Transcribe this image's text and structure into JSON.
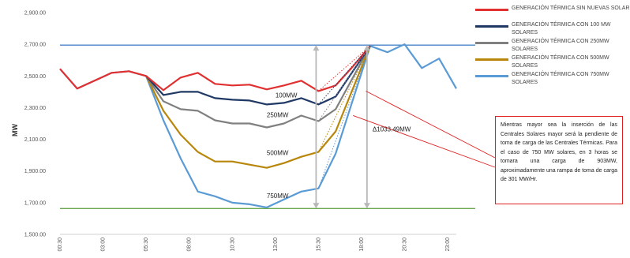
{
  "chart_data": {
    "type": "line",
    "ylabel": "MW",
    "ylim": [
      1500,
      2900
    ],
    "y_ticks": [
      "1,500.00",
      "1,700.00",
      "1,900.00",
      "2,100.00",
      "2,300.00",
      "2,500.00",
      "2,700.00",
      "2,900.00"
    ],
    "x_ticks": [
      "00:30",
      "03:00",
      "05:30",
      "08:00",
      "10:30",
      "13:00",
      "15:30",
      "18:00",
      "20:30",
      "23:00"
    ],
    "x": [
      "00:30",
      "01:30",
      "02:30",
      "03:30",
      "04:30",
      "05:30",
      "06:30",
      "07:30",
      "08:30",
      "09:30",
      "10:30",
      "11:30",
      "12:30",
      "13:30",
      "14:30",
      "15:30",
      "16:30",
      "17:30",
      "18:30",
      "19:30",
      "20:30",
      "21:30",
      "22:30",
      "23:30"
    ],
    "hlines": [
      {
        "value": 2695,
        "color": "#4a86c8"
      },
      {
        "value": 1663,
        "color": "#6aa84f"
      }
    ],
    "series": [
      {
        "name": "GENERACIÓN TÉRMICA SIN NUEVAS SOLAR",
        "color": "#e03030",
        "values": [
          2545,
          2420,
          2470,
          2520,
          2530,
          2500,
          2410,
          2490,
          2520,
          2450,
          2440,
          2445,
          2415,
          2440,
          2470,
          2405,
          2440,
          2560,
          2690,
          null,
          null,
          null,
          null,
          null
        ]
      },
      {
        "name": "GENERACIÓN TÉRMICA CON 100 MW SOLARES",
        "color": "#1f3864",
        "values": [
          null,
          null,
          null,
          null,
          null,
          2500,
          2380,
          2400,
          2400,
          2360,
          2350,
          2345,
          2320,
          2330,
          2360,
          2320,
          2370,
          2530,
          2690,
          null,
          null,
          null,
          null,
          null
        ]
      },
      {
        "name": "GENERACIÓN TÉRMICA CON 250MW SOLARES",
        "color": "#808080",
        "values": [
          null,
          null,
          null,
          null,
          null,
          2500,
          2340,
          2290,
          2280,
          2220,
          2200,
          2200,
          2175,
          2200,
          2250,
          2215,
          2290,
          2490,
          2690,
          null,
          null,
          null,
          null,
          null
        ]
      },
      {
        "name": "GENERACIÓN TÉRMICA CON 500MW SOLARES",
        "color": "#b8860b",
        "values": [
          null,
          null,
          null,
          null,
          null,
          2500,
          2280,
          2130,
          2020,
          1960,
          1960,
          1940,
          1920,
          1950,
          1990,
          2020,
          2150,
          2420,
          2690,
          null,
          null,
          null,
          null,
          null
        ]
      },
      {
        "name": "GENERACIÓN TÉRMICA CON 750MW SOLARES",
        "color": "#5b9bd5",
        "values": [
          2545,
          2420,
          2470,
          2520,
          2530,
          2500,
          2220,
          1980,
          1770,
          1740,
          1700,
          1690,
          1670,
          1720,
          1770,
          1790,
          2010,
          2350,
          2690,
          2650,
          2700,
          2550,
          2610,
          2420
        ]
      }
    ],
    "series_labels": [
      {
        "text": "100MW",
        "x": "13:00",
        "y": 2365
      },
      {
        "text": "250MW",
        "x": "12:30",
        "y": 2240
      },
      {
        "text": "500MW",
        "x": "12:30",
        "y": 2000
      },
      {
        "text": "750MW",
        "x": "12:30",
        "y": 1730
      }
    ],
    "annotations": [
      {
        "text": "Δ1033.49MW",
        "x": "18:30",
        "y": 2150
      }
    ],
    "legend_position": "right"
  },
  "note": "Mientras mayor sea la inserción de las Centrales Solares mayor será la pendiente de toma de carga de las Centrales Térmicas. Para el caso de 750 MW solares, en 3 horas se tomara una carga de 903MW, aproximadamente una rampa de toma de carga de 301 MW/Hr."
}
